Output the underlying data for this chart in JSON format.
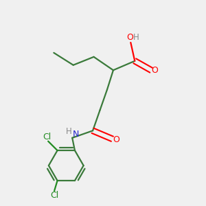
{
  "bg_color": "#f0f0f0",
  "bond_color": "#3a7a3a",
  "atom_colors": {
    "O": "#ff0000",
    "N": "#2222cc",
    "Cl": "#228B22",
    "H": "#888888",
    "C": "#3a7a3a"
  },
  "figsize": [
    3.0,
    3.0
  ],
  "dpi": 100
}
